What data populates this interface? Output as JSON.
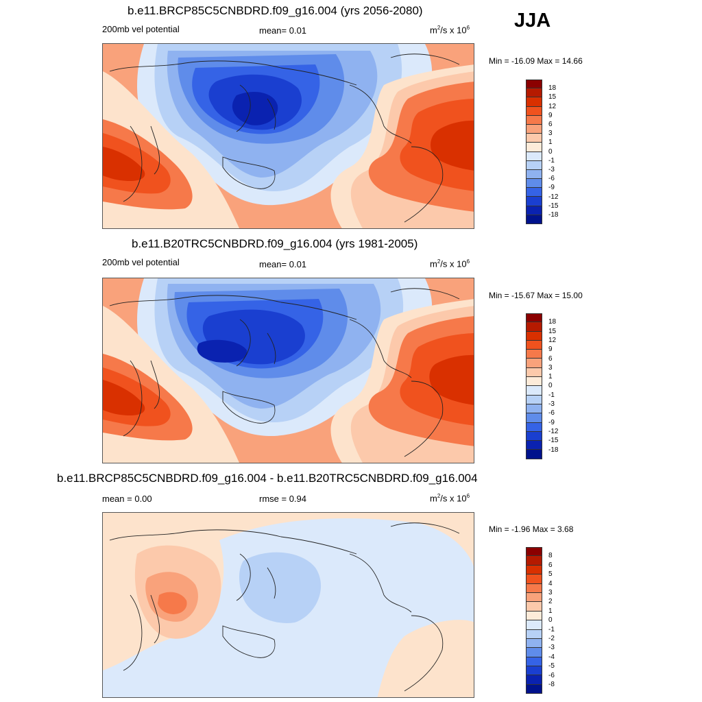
{
  "season": "JJA",
  "panels": [
    {
      "title": "b.e11.BRCP85C5CNBDRD.f09_g16.004 (yrs 2056-2080)",
      "left_label": "200mb vel potential",
      "center_label": "mean=   0.01",
      "units": "m",
      "units_sup1": "2",
      "units_mid": "/s x 10",
      "units_sup2": "6",
      "minmax": "Min = -16.09 Max =  14.66",
      "levels": [
        "18",
        "15",
        "12",
        "9",
        "6",
        "3",
        "1",
        "0",
        "-1",
        "-3",
        "-6",
        "-9",
        "-12",
        "-15",
        "-18"
      ]
    },
    {
      "title": "b.e11.B20TRC5CNBDRD.f09_g16.004 (yrs 1981-2005)",
      "left_label": "200mb vel potential",
      "center_label": "mean=   0.01",
      "units": "m",
      "units_sup1": "2",
      "units_mid": "/s x 10",
      "units_sup2": "6",
      "minmax": "Min = -15.67 Max =  15.00",
      "levels": [
        "18",
        "15",
        "12",
        "9",
        "6",
        "3",
        "1",
        "0",
        "-1",
        "-3",
        "-6",
        "-9",
        "-12",
        "-15",
        "-18"
      ]
    },
    {
      "title": "b.e11.BRCP85C5CNBDRD.f09_g16.004 - b.e11.B20TRC5CNBDRD.f09_g16.004",
      "left_label": "mean =   0.00",
      "center_label": "rmse =   0.94",
      "units": "m",
      "units_sup1": "2",
      "units_mid": "/s x 10",
      "units_sup2": "6",
      "minmax": "Min =  -1.96 Max =   3.68",
      "levels": [
        "8",
        "6",
        "5",
        "4",
        "3",
        "2",
        "1",
        "0",
        "-1",
        "-2",
        "-3",
        "-4",
        "-5",
        "-6",
        "-8"
      ]
    }
  ],
  "colorbar_colors": [
    "#8b0000",
    "#b51a00",
    "#d93000",
    "#f0521e",
    "#f6794a",
    "#f9a27b",
    "#fcc9ab",
    "#fdebd9",
    "#dbe9fb",
    "#b7d1f6",
    "#8fb2f0",
    "#5f8cea",
    "#3563e6",
    "#1a3fd0",
    "#0a22b0",
    "#00128c"
  ],
  "map_colors": {
    "pos_weak": "#fde3cc",
    "pos_1": "#fcc9ab",
    "pos_3": "#f9a27b",
    "pos_6": "#f6794a",
    "pos_9": "#f0521e",
    "pos_12": "#d93000",
    "neg_weak": "#dbe9fb",
    "neg_1": "#b7d1f6",
    "neg_3": "#8fb2f0",
    "neg_6": "#5f8cea",
    "neg_9": "#3563e6",
    "neg_12": "#1a3fd0",
    "neg_15": "#0a22b0"
  }
}
